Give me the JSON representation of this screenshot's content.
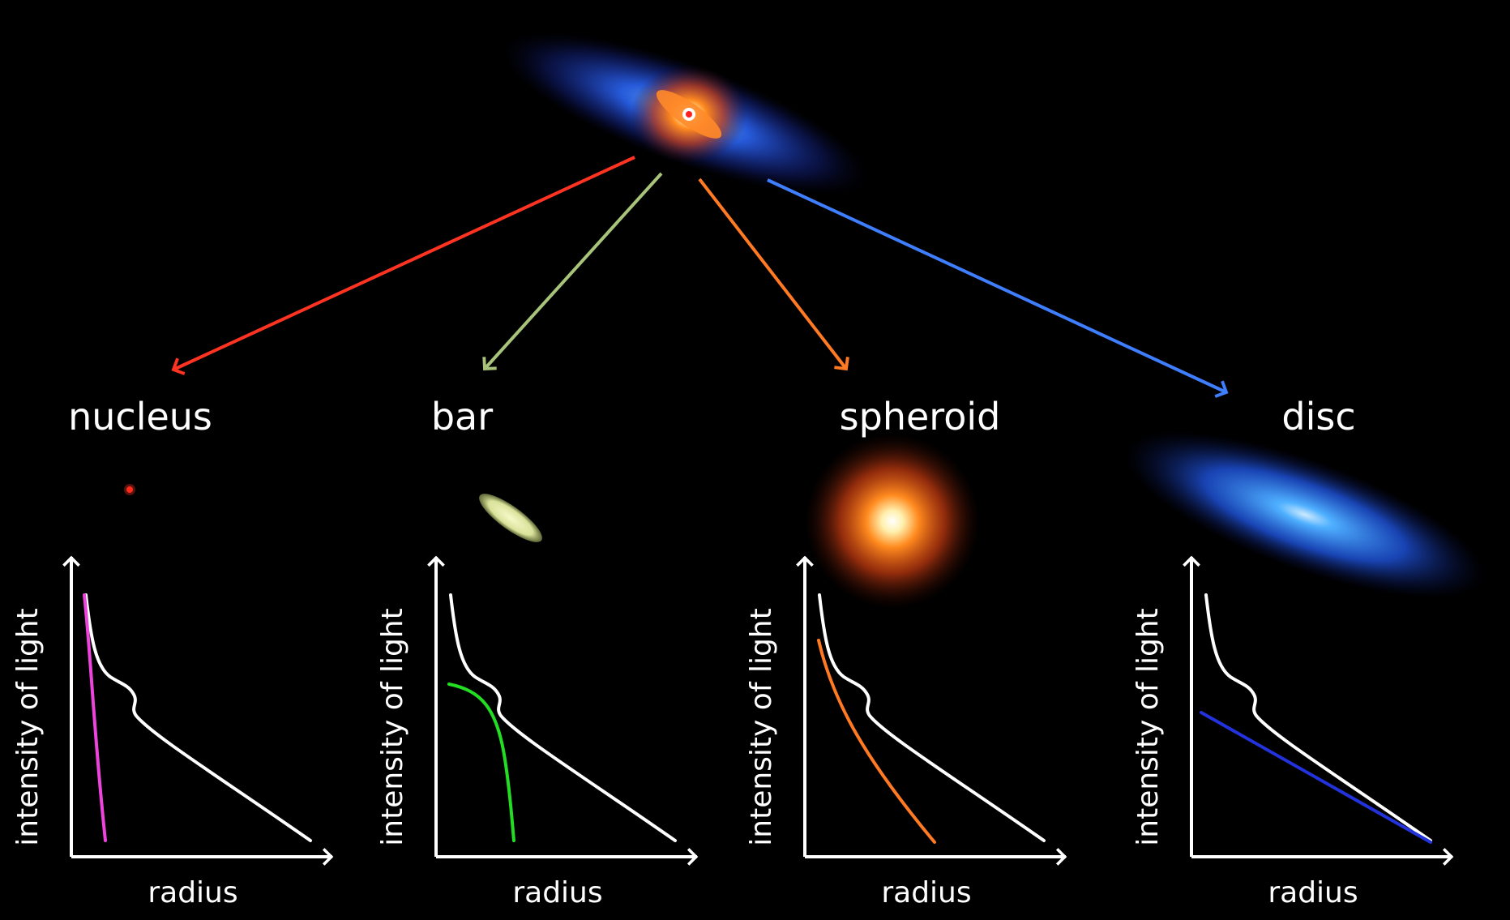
{
  "components": [
    {
      "key": "nucleus",
      "title": "nucleus",
      "color": "#ff3322",
      "curve_color": "#ee44dd"
    },
    {
      "key": "bar",
      "title": "bar",
      "color": "#a8c47a",
      "curve_color": "#22dd22"
    },
    {
      "key": "spheroid",
      "title": "spheroid",
      "color": "#ff7a22",
      "curve_color": "#ff7a22"
    },
    {
      "key": "disc",
      "title": "disc",
      "color": "#3f7fff",
      "curve_color": "#2233dd"
    }
  ],
  "axes": {
    "xlabel": "radius",
    "ylabel": "intensity of light"
  }
}
